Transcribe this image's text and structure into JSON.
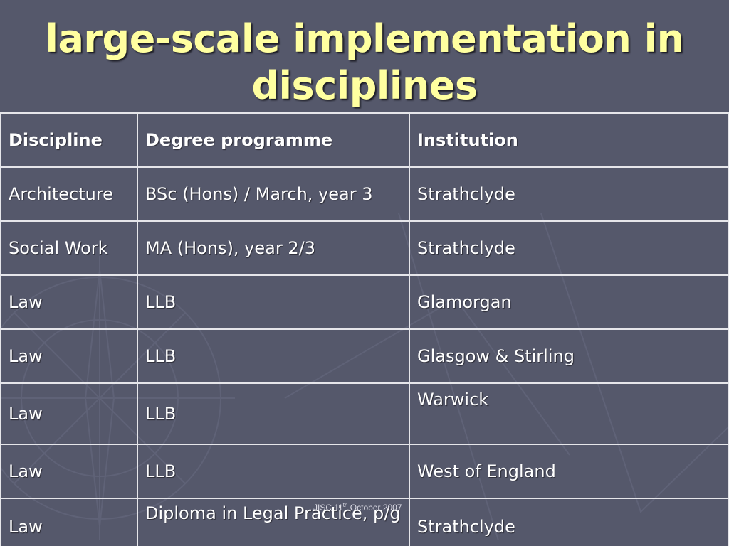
{
  "slide": {
    "title_line1": "large-scale implementation in",
    "title_line2": "disciplines",
    "footer_prefix": "JISC 11",
    "footer_sup": "th",
    "footer_suffix": " October 2007"
  },
  "table": {
    "headers": [
      "Discipline",
      "Degree programme",
      "Institution"
    ],
    "rows": [
      [
        "Architecture",
        "BSc (Hons) / March, year 3",
        "Strathclyde"
      ],
      [
        "Social Work",
        "MA (Hons), year 2/3",
        "Strathclyde"
      ],
      [
        "Law",
        "LLB",
        "Glamorgan"
      ],
      [
        "Law",
        "LLB",
        "Glasgow & Stirling"
      ],
      [
        "Law",
        "LLB",
        "Warwick"
      ],
      [
        "Law",
        "LLB",
        "West of England"
      ],
      [
        "Law",
        "Diploma in Legal Practice, p/g",
        "Strathclyde"
      ]
    ]
  },
  "colors": {
    "background": "#55586b",
    "title": "#ffffa0",
    "text": "#ffffff",
    "grid": "#e6e6ea"
  }
}
